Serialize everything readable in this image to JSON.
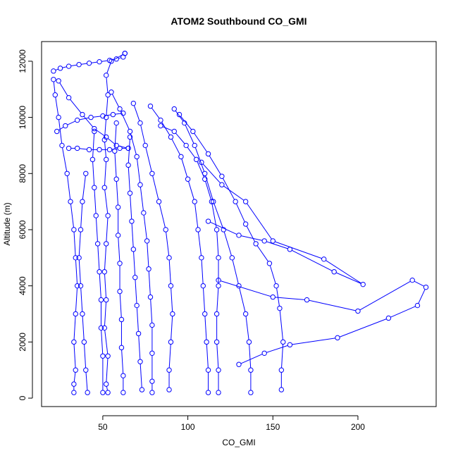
{
  "chart_data": {
    "type": "line",
    "title": "ATOM2 Southbound CO_GMI",
    "xlabel": "CO_GMI",
    "ylabel": "Altitude (m)",
    "xlim": [
      14,
      246
    ],
    "ylim": [
      -300,
      12700
    ],
    "xticks": [
      50,
      100,
      150,
      200
    ],
    "yticks": [
      0,
      2000,
      4000,
      6000,
      8000,
      10000,
      12000
    ],
    "series_color": "#0000ff",
    "marker": "open-circle",
    "series": [
      {
        "values": [
          [
            21,
            11650
          ],
          [
            25,
            11750
          ],
          [
            30,
            11820
          ],
          [
            36,
            11880
          ],
          [
            42,
            11930
          ],
          [
            48,
            11980
          ],
          [
            54,
            12030
          ],
          [
            58,
            12080
          ],
          [
            62,
            12150
          ],
          [
            63,
            12280
          ]
        ]
      },
      {
        "values": [
          [
            63,
            12280
          ],
          [
            55,
            12000
          ],
          [
            52,
            11500
          ],
          [
            53,
            10800
          ],
          [
            52,
            10000
          ],
          [
            51,
            9200
          ],
          [
            52,
            8500
          ],
          [
            51,
            7500
          ],
          [
            53,
            6500
          ],
          [
            52,
            5500
          ],
          [
            51,
            4500
          ],
          [
            52,
            3500
          ],
          [
            51,
            2500
          ],
          [
            53,
            1500
          ],
          [
            52,
            500
          ],
          [
            53,
            200
          ]
        ]
      },
      {
        "values": [
          [
            21,
            11350
          ],
          [
            22,
            10800
          ],
          [
            24,
            10000
          ],
          [
            26,
            9000
          ],
          [
            29,
            8000
          ],
          [
            31,
            7000
          ],
          [
            33,
            6000
          ],
          [
            34,
            5000
          ],
          [
            35,
            4000
          ],
          [
            34,
            3000
          ],
          [
            33,
            2000
          ],
          [
            34,
            1000
          ],
          [
            33,
            500
          ],
          [
            33,
            200
          ]
        ]
      },
      {
        "values": [
          [
            24,
            11300
          ],
          [
            30,
            10700
          ],
          [
            38,
            10100
          ],
          [
            45,
            9600
          ],
          [
            52,
            9300
          ],
          [
            58,
            9000
          ],
          [
            65,
            8900
          ]
        ]
      },
      {
        "values": [
          [
            23,
            9500
          ],
          [
            28,
            9700
          ],
          [
            35,
            9900
          ],
          [
            43,
            10000
          ],
          [
            50,
            10050
          ],
          [
            56,
            10100
          ],
          [
            62,
            10150
          ]
        ]
      },
      {
        "values": [
          [
            30,
            8900
          ],
          [
            35,
            8900
          ],
          [
            42,
            8850
          ],
          [
            48,
            8850
          ],
          [
            54,
            8850
          ],
          [
            60,
            8900
          ],
          [
            65,
            8900
          ]
        ]
      },
      {
        "values": [
          [
            55,
            10900
          ],
          [
            60,
            10300
          ],
          [
            66,
            9500
          ],
          [
            70,
            8600
          ],
          [
            72,
            7600
          ],
          [
            74,
            6600
          ],
          [
            76,
            5600
          ],
          [
            77,
            4600
          ],
          [
            78,
            3600
          ],
          [
            79,
            2600
          ],
          [
            79,
            1600
          ],
          [
            79,
            600
          ],
          [
            79,
            200
          ]
        ]
      },
      {
        "values": [
          [
            68,
            10500
          ],
          [
            72,
            9800
          ],
          [
            75,
            9000
          ],
          [
            79,
            8000
          ],
          [
            83,
            7000
          ],
          [
            87,
            6000
          ],
          [
            89,
            5000
          ],
          [
            90,
            4000
          ],
          [
            91,
            3000
          ],
          [
            90,
            2000
          ],
          [
            89,
            1000
          ],
          [
            89,
            300
          ]
        ]
      },
      {
        "values": [
          [
            78,
            10400
          ],
          [
            84,
            9900
          ],
          [
            90,
            9300
          ],
          [
            96,
            8600
          ],
          [
            100,
            7800
          ],
          [
            104,
            7000
          ],
          [
            106,
            6000
          ],
          [
            108,
            5000
          ],
          [
            109,
            4000
          ],
          [
            110,
            3000
          ],
          [
            111,
            2000
          ],
          [
            112,
            1000
          ],
          [
            112,
            200
          ]
        ]
      },
      {
        "values": [
          [
            84,
            9700
          ],
          [
            92,
            9500
          ],
          [
            99,
            9000
          ],
          [
            105,
            8500
          ],
          [
            110,
            7800
          ],
          [
            114,
            7000
          ],
          [
            117,
            6000
          ],
          [
            118,
            5000
          ],
          [
            118,
            4000
          ],
          [
            117,
            3000
          ],
          [
            117,
            2000
          ],
          [
            118,
            1000
          ],
          [
            118,
            200
          ]
        ]
      },
      {
        "values": [
          [
            92,
            10300
          ],
          [
            98,
            9800
          ],
          [
            104,
            9000
          ],
          [
            110,
            8000
          ],
          [
            115,
            7000
          ],
          [
            121,
            6000
          ],
          [
            126,
            5000
          ],
          [
            130,
            4000
          ],
          [
            134,
            3000
          ],
          [
            136,
            2000
          ],
          [
            137,
            1000
          ],
          [
            137,
            200
          ]
        ]
      },
      {
        "values": [
          [
            95,
            10100
          ],
          [
            103,
            9500
          ],
          [
            112,
            8700
          ],
          [
            120,
            7900
          ],
          [
            128,
            7000
          ],
          [
            134,
            6200
          ],
          [
            140,
            5500
          ],
          [
            148,
            4800
          ],
          [
            152,
            4000
          ],
          [
            154,
            3200
          ],
          [
            156,
            2000
          ],
          [
            155,
            1000
          ],
          [
            155,
            300
          ]
        ]
      },
      {
        "values": [
          [
            108,
            8400
          ],
          [
            120,
            7600
          ],
          [
            134,
            7000
          ],
          [
            150,
            5600
          ],
          [
            180,
            4950
          ],
          [
            203,
            4050
          ],
          [
            186,
            4500
          ],
          [
            160,
            5300
          ],
          [
            145,
            5600
          ],
          [
            130,
            5800
          ],
          [
            112,
            6300
          ]
        ]
      },
      {
        "values": [
          [
            118,
            4200
          ],
          [
            150,
            3600
          ],
          [
            170,
            3500
          ],
          [
            200,
            3100
          ],
          [
            232,
            4200
          ],
          [
            240,
            3950
          ],
          [
            235,
            3300
          ],
          [
            218,
            2850
          ],
          [
            188,
            2150
          ],
          [
            160,
            1900
          ],
          [
            145,
            1600
          ],
          [
            130,
            1200
          ]
        ]
      },
      {
        "values": [
          [
            40,
            8000
          ],
          [
            38,
            7000
          ],
          [
            37,
            6000
          ],
          [
            36,
            5000
          ],
          [
            37,
            4000
          ],
          [
            38,
            3000
          ],
          [
            39,
            2000
          ],
          [
            40,
            1000
          ],
          [
            41,
            200
          ]
        ]
      },
      {
        "values": [
          [
            45,
            9500
          ],
          [
            44,
            8500
          ],
          [
            45,
            7500
          ],
          [
            46,
            6500
          ],
          [
            47,
            5500
          ],
          [
            48,
            4500
          ],
          [
            49,
            3500
          ],
          [
            49,
            2500
          ],
          [
            50,
            1500
          ],
          [
            50,
            200
          ]
        ]
      },
      {
        "values": [
          [
            58,
            9800
          ],
          [
            57,
            8800
          ],
          [
            58,
            7800
          ],
          [
            59,
            6800
          ],
          [
            59,
            5800
          ],
          [
            60,
            4800
          ],
          [
            60,
            3800
          ],
          [
            61,
            2800
          ],
          [
            61,
            1800
          ],
          [
            62,
            800
          ],
          [
            62,
            200
          ]
        ]
      },
      {
        "values": [
          [
            66,
            9300
          ],
          [
            65,
            8300
          ],
          [
            66,
            7300
          ],
          [
            67,
            6300
          ],
          [
            68,
            5300
          ],
          [
            69,
            4300
          ],
          [
            70,
            3300
          ],
          [
            71,
            2300
          ],
          [
            72,
            1300
          ],
          [
            73,
            300
          ]
        ]
      }
    ]
  }
}
